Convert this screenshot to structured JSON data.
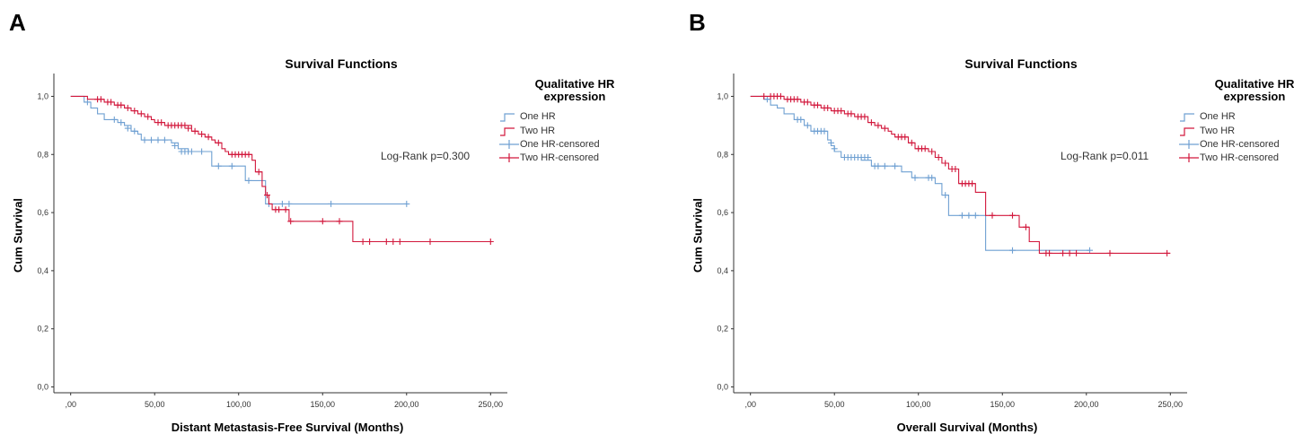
{
  "panels": [
    {
      "letter": "A",
      "title": "Survival Functions",
      "legend_title": "Qualitative HR expression",
      "legend_items": [
        "One HR",
        "Two HR",
        "One HR-censored",
        "Two HR-censored"
      ],
      "annotation": "Log-Rank p=0.300"
    },
    {
      "letter": "B",
      "title": "Survival Functions",
      "legend_title": "Qualitative HR expression",
      "legend_items": [
        "One HR",
        "Two HR",
        "One HR-censored",
        "Two HR-censored"
      ],
      "annotation": "Log-Rank p=0.011"
    }
  ],
  "colors": {
    "one_hr": "#6fa0d2",
    "two_hr": "#d2183c"
  },
  "chart_data": [
    {
      "type": "line",
      "title": "Survival Functions",
      "xlabel": "Distant Metastasis-Free Survival (Months)",
      "ylabel": "Cum Survival",
      "xlim": [
        -10,
        260
      ],
      "ylim": [
        -0.02,
        1.06
      ],
      "xticks": [
        0,
        50,
        100,
        150,
        200,
        250
      ],
      "xtick_labels": [
        ",00",
        "50,00",
        "100,00",
        "150,00",
        "200,00",
        "250,00"
      ],
      "yticks": [
        0,
        0.2,
        0.4,
        0.6,
        0.8,
        1.0
      ],
      "ytick_labels": [
        "0,0",
        "0,2",
        "0,4",
        "0,6",
        "0,8",
        "1,0"
      ],
      "legend_position": "right",
      "series": [
        {
          "name": "One HR",
          "color": "#6fa0d2",
          "steps": [
            [
              0,
              1.0
            ],
            [
              8,
              0.98
            ],
            [
              12,
              0.96
            ],
            [
              16,
              0.94
            ],
            [
              20,
              0.92
            ],
            [
              28,
              0.91
            ],
            [
              32,
              0.9
            ],
            [
              36,
              0.88
            ],
            [
              40,
              0.87
            ],
            [
              42,
              0.85
            ],
            [
              60,
              0.84
            ],
            [
              64,
              0.82
            ],
            [
              70,
              0.81
            ],
            [
              84,
              0.76
            ],
            [
              104,
              0.71
            ],
            [
              110,
              0.71
            ],
            [
              116,
              0.63
            ],
            [
              200,
              0.63
            ]
          ],
          "censored": [
            [
              10,
              0.98
            ],
            [
              26,
              0.92
            ],
            [
              30,
              0.91
            ],
            [
              34,
              0.89
            ],
            [
              38,
              0.88
            ],
            [
              44,
              0.85
            ],
            [
              48,
              0.85
            ],
            [
              52,
              0.85
            ],
            [
              56,
              0.85
            ],
            [
              62,
              0.83
            ],
            [
              66,
              0.81
            ],
            [
              68,
              0.81
            ],
            [
              70,
              0.81
            ],
            [
              72,
              0.81
            ],
            [
              78,
              0.81
            ],
            [
              88,
              0.76
            ],
            [
              96,
              0.76
            ],
            [
              106,
              0.71
            ],
            [
              118,
              0.63
            ],
            [
              126,
              0.63
            ],
            [
              130,
              0.63
            ],
            [
              155,
              0.63
            ],
            [
              200,
              0.63
            ]
          ]
        },
        {
          "name": "Two HR",
          "color": "#d2183c",
          "steps": [
            [
              0,
              1.0
            ],
            [
              10,
              0.99
            ],
            [
              20,
              0.98
            ],
            [
              26,
              0.97
            ],
            [
              32,
              0.96
            ],
            [
              36,
              0.95
            ],
            [
              40,
              0.94
            ],
            [
              44,
              0.93
            ],
            [
              48,
              0.92
            ],
            [
              50,
              0.91
            ],
            [
              56,
              0.9
            ],
            [
              72,
              0.88
            ],
            [
              76,
              0.87
            ],
            [
              80,
              0.86
            ],
            [
              84,
              0.85
            ],
            [
              86,
              0.84
            ],
            [
              90,
              0.82
            ],
            [
              92,
              0.81
            ],
            [
              94,
              0.8
            ],
            [
              108,
              0.78
            ],
            [
              110,
              0.74
            ],
            [
              114,
              0.69
            ],
            [
              116,
              0.66
            ],
            [
              118,
              0.63
            ],
            [
              120,
              0.61
            ],
            [
              130,
              0.57
            ],
            [
              168,
              0.5
            ],
            [
              250,
              0.5
            ]
          ],
          "censored": [
            [
              16,
              0.99
            ],
            [
              18,
              0.99
            ],
            [
              22,
              0.98
            ],
            [
              24,
              0.98
            ],
            [
              28,
              0.97
            ],
            [
              30,
              0.97
            ],
            [
              34,
              0.96
            ],
            [
              38,
              0.95
            ],
            [
              42,
              0.94
            ],
            [
              46,
              0.93
            ],
            [
              52,
              0.91
            ],
            [
              54,
              0.91
            ],
            [
              58,
              0.9
            ],
            [
              60,
              0.9
            ],
            [
              62,
              0.9
            ],
            [
              64,
              0.9
            ],
            [
              66,
              0.9
            ],
            [
              68,
              0.9
            ],
            [
              70,
              0.89
            ],
            [
              74,
              0.88
            ],
            [
              78,
              0.87
            ],
            [
              82,
              0.86
            ],
            [
              88,
              0.84
            ],
            [
              96,
              0.8
            ],
            [
              98,
              0.8
            ],
            [
              100,
              0.8
            ],
            [
              102,
              0.8
            ],
            [
              104,
              0.8
            ],
            [
              106,
              0.8
            ],
            [
              112,
              0.74
            ],
            [
              117,
              0.66
            ],
            [
              122,
              0.61
            ],
            [
              124,
              0.61
            ],
            [
              128,
              0.61
            ],
            [
              131,
              0.57
            ],
            [
              150,
              0.57
            ],
            [
              160,
              0.57
            ],
            [
              174,
              0.5
            ],
            [
              178,
              0.5
            ],
            [
              188,
              0.5
            ],
            [
              192,
              0.5
            ],
            [
              196,
              0.5
            ],
            [
              214,
              0.5
            ],
            [
              250,
              0.5
            ]
          ]
        }
      ]
    },
    {
      "type": "line",
      "title": "Survival Functions",
      "xlabel": "Overall Survival (Months)",
      "ylabel": "Cum Survival",
      "xlim": [
        -10,
        260
      ],
      "ylim": [
        -0.02,
        1.06
      ],
      "xticks": [
        0,
        50,
        100,
        150,
        200,
        250
      ],
      "xtick_labels": [
        ",00",
        "50,00",
        "100,00",
        "150,00",
        "200,00",
        "250,00"
      ],
      "yticks": [
        0,
        0.2,
        0.4,
        0.6,
        0.8,
        1.0
      ],
      "ytick_labels": [
        "0,0",
        "0,2",
        "0,4",
        "0,6",
        "0,8",
        "1,0"
      ],
      "legend_position": "right",
      "series": [
        {
          "name": "One HR",
          "color": "#6fa0d2",
          "steps": [
            [
              0,
              1.0
            ],
            [
              8,
              0.99
            ],
            [
              12,
              0.97
            ],
            [
              16,
              0.96
            ],
            [
              20,
              0.94
            ],
            [
              26,
              0.92
            ],
            [
              32,
              0.9
            ],
            [
              36,
              0.88
            ],
            [
              46,
              0.85
            ],
            [
              48,
              0.83
            ],
            [
              50,
              0.81
            ],
            [
              54,
              0.79
            ],
            [
              66,
              0.78
            ],
            [
              72,
              0.76
            ],
            [
              90,
              0.74
            ],
            [
              96,
              0.72
            ],
            [
              110,
              0.7
            ],
            [
              114,
              0.66
            ],
            [
              118,
              0.59
            ],
            [
              140,
              0.47
            ],
            [
              202,
              0.47
            ]
          ],
          "censored": [
            [
              10,
              0.99
            ],
            [
              28,
              0.92
            ],
            [
              30,
              0.92
            ],
            [
              34,
              0.9
            ],
            [
              38,
              0.88
            ],
            [
              40,
              0.88
            ],
            [
              42,
              0.88
            ],
            [
              44,
              0.88
            ],
            [
              48,
              0.84
            ],
            [
              50,
              0.82
            ],
            [
              56,
              0.79
            ],
            [
              58,
              0.79
            ],
            [
              60,
              0.79
            ],
            [
              62,
              0.79
            ],
            [
              64,
              0.79
            ],
            [
              66,
              0.79
            ],
            [
              68,
              0.79
            ],
            [
              70,
              0.79
            ],
            [
              74,
              0.76
            ],
            [
              76,
              0.76
            ],
            [
              80,
              0.76
            ],
            [
              86,
              0.76
            ],
            [
              98,
              0.72
            ],
            [
              106,
              0.72
            ],
            [
              108,
              0.72
            ],
            [
              116,
              0.66
            ],
            [
              126,
              0.59
            ],
            [
              130,
              0.59
            ],
            [
              134,
              0.59
            ],
            [
              156,
              0.47
            ],
            [
              202,
              0.47
            ]
          ]
        },
        {
          "name": "Two HR",
          "color": "#d2183c",
          "steps": [
            [
              0,
              1.0
            ],
            [
              20,
              0.99
            ],
            [
              30,
              0.98
            ],
            [
              36,
              0.97
            ],
            [
              42,
              0.96
            ],
            [
              48,
              0.95
            ],
            [
              56,
              0.94
            ],
            [
              62,
              0.93
            ],
            [
              70,
              0.91
            ],
            [
              74,
              0.9
            ],
            [
              78,
              0.89
            ],
            [
              82,
              0.88
            ],
            [
              84,
              0.87
            ],
            [
              86,
              0.86
            ],
            [
              94,
              0.84
            ],
            [
              98,
              0.82
            ],
            [
              106,
              0.81
            ],
            [
              110,
              0.79
            ],
            [
              114,
              0.77
            ],
            [
              118,
              0.75
            ],
            [
              124,
              0.7
            ],
            [
              134,
              0.67
            ],
            [
              140,
              0.59
            ],
            [
              160,
              0.55
            ],
            [
              166,
              0.5
            ],
            [
              172,
              0.46
            ],
            [
              250,
              0.46
            ]
          ],
          "censored": [
            [
              8,
              1.0
            ],
            [
              12,
              1.0
            ],
            [
              14,
              1.0
            ],
            [
              16,
              1.0
            ],
            [
              18,
              1.0
            ],
            [
              22,
              0.99
            ],
            [
              24,
              0.99
            ],
            [
              26,
              0.99
            ],
            [
              28,
              0.99
            ],
            [
              32,
              0.98
            ],
            [
              34,
              0.98
            ],
            [
              38,
              0.97
            ],
            [
              40,
              0.97
            ],
            [
              44,
              0.96
            ],
            [
              46,
              0.96
            ],
            [
              50,
              0.95
            ],
            [
              52,
              0.95
            ],
            [
              54,
              0.95
            ],
            [
              58,
              0.94
            ],
            [
              60,
              0.94
            ],
            [
              64,
              0.93
            ],
            [
              66,
              0.93
            ],
            [
              68,
              0.93
            ],
            [
              72,
              0.91
            ],
            [
              76,
              0.9
            ],
            [
              80,
              0.89
            ],
            [
              88,
              0.86
            ],
            [
              90,
              0.86
            ],
            [
              92,
              0.86
            ],
            [
              96,
              0.84
            ],
            [
              100,
              0.82
            ],
            [
              102,
              0.82
            ],
            [
              104,
              0.82
            ],
            [
              108,
              0.81
            ],
            [
              112,
              0.79
            ],
            [
              116,
              0.77
            ],
            [
              120,
              0.75
            ],
            [
              122,
              0.75
            ],
            [
              126,
              0.7
            ],
            [
              128,
              0.7
            ],
            [
              130,
              0.7
            ],
            [
              132,
              0.7
            ],
            [
              144,
              0.59
            ],
            [
              156,
              0.59
            ],
            [
              164,
              0.55
            ],
            [
              176,
              0.46
            ],
            [
              178,
              0.46
            ],
            [
              186,
              0.46
            ],
            [
              190,
              0.46
            ],
            [
              194,
              0.46
            ],
            [
              214,
              0.46
            ],
            [
              248,
              0.46
            ]
          ]
        }
      ]
    }
  ]
}
